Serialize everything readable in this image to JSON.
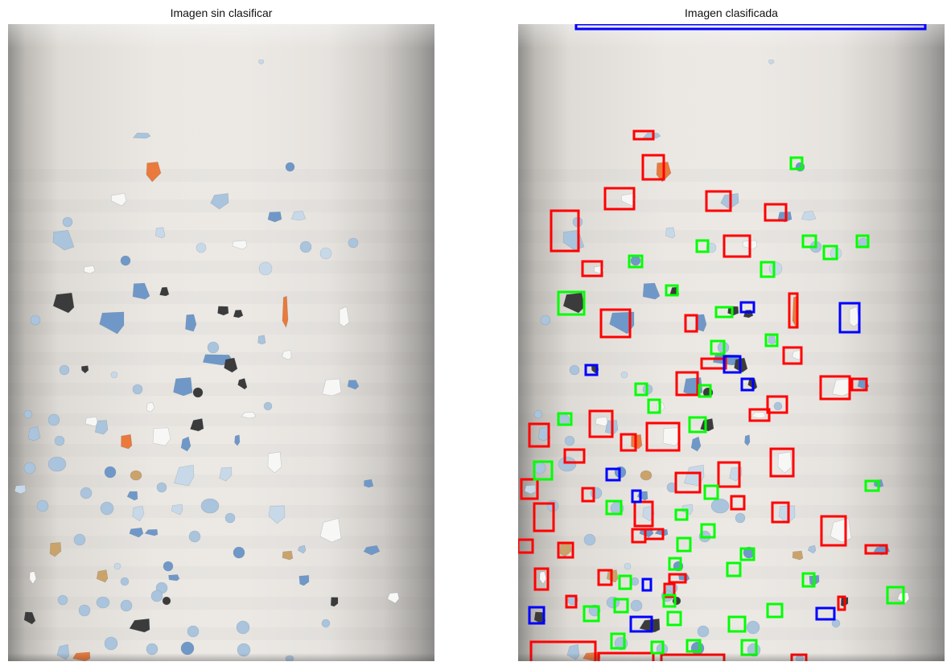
{
  "left_title": "Imagen sin clasificar",
  "right_title": "Imagen clasificada",
  "box_colors": {
    "red": "#ff0000",
    "green": "#00ff00",
    "blue": "#0000ff"
  },
  "particle_colors": {
    "light_blue": "#a9c4dc",
    "pale_blue": "#c7d9e8",
    "blue": "#6f98c8",
    "dark": "#3b3b3b",
    "white": "#f7f7f5",
    "orange": "#e97a3c",
    "tan": "#c9a36a"
  }
}
